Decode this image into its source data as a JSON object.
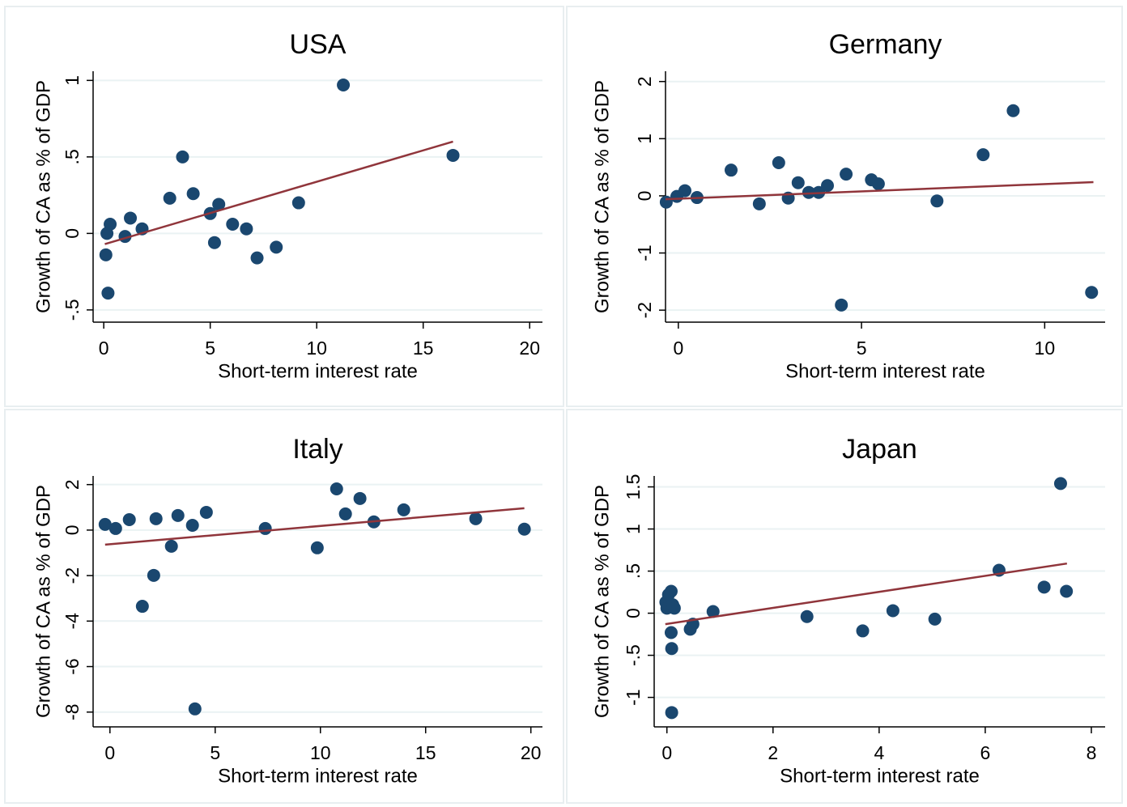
{
  "chart_data": [
    {
      "type": "scatter",
      "title": "USA",
      "xlabel": "Short-term interest rate",
      "ylabel": "Growth of CA as % of GDP",
      "xlim": [
        -0.5,
        20.6
      ],
      "ylim": [
        -0.58,
        1.06
      ],
      "xticks": [
        0,
        5,
        10,
        15,
        20
      ],
      "yticks": [
        {
          "value": -0.5,
          "label": "-.5"
        },
        0,
        {
          "value": 0.5,
          "label": ".5"
        },
        1
      ],
      "grid": true,
      "series": [
        {
          "color": "#1a476f",
          "x": [
            0.15,
            0.3,
            0.1,
            0.2,
            1.0,
            1.25,
            1.8,
            3.1,
            3.7,
            4.2,
            5.0,
            5.4,
            5.2,
            6.05,
            6.7,
            7.2,
            8.1,
            9.15,
            11.25,
            16.4
          ],
          "values": [
            0,
            0.06,
            -0.14,
            -0.39,
            -0.02,
            0.1,
            0.03,
            0.23,
            0.5,
            0.26,
            0.13,
            0.19,
            -0.06,
            0.06,
            0.03,
            -0.16,
            -0.09,
            0.2,
            0.97,
            0.51
          ]
        }
      ],
      "fit_line": {
        "color": "#90353b",
        "x": [
          0.05,
          16.4
        ],
        "values": [
          -0.07,
          0.6
        ]
      }
    },
    {
      "type": "scatter",
      "title": "Germany",
      "xlabel": "Short-term interest rate",
      "ylabel": "Growth of CA as % of GDP",
      "xlim": [
        -0.35,
        11.65
      ],
      "ylim": [
        -2.21,
        2.18
      ],
      "xticks": [
        0,
        5,
        10
      ],
      "yticks": [
        -2,
        -1,
        0,
        1,
        2
      ],
      "grid": true,
      "series": [
        {
          "color": "#1a476f",
          "x": [
            -0.33,
            -0.04,
            0.18,
            0.51,
            1.44,
            2.21,
            2.74,
            3.0,
            3.27,
            3.56,
            3.83,
            4.07,
            4.58,
            5.27,
            5.46,
            4.45,
            7.06,
            8.32,
            9.14,
            11.28
          ],
          "values": [
            -0.11,
            -0.01,
            0.09,
            -0.03,
            0.45,
            -0.14,
            0.58,
            -0.04,
            0.23,
            0.06,
            0.06,
            0.18,
            0.38,
            0.28,
            0.21,
            -1.91,
            -0.09,
            0.72,
            1.49,
            -1.69
          ]
        }
      ],
      "fit_line": {
        "color": "#90353b",
        "x": [
          -0.35,
          11.33
        ],
        "values": [
          -0.06,
          0.24
        ]
      }
    },
    {
      "type": "scatter",
      "title": "Italy",
      "xlabel": "Short-term interest rate",
      "ylabel": "Growth of CA as % of GDP",
      "xlim": [
        -0.8,
        20.55
      ],
      "ylim": [
        -8.65,
        2.38
      ],
      "xticks": [
        0,
        5,
        10,
        15,
        20
      ],
      "yticks": [
        -8,
        -6,
        -4,
        -2,
        0,
        2
      ],
      "grid": true,
      "series": [
        {
          "color": "#1a476f",
          "x": [
            -0.23,
            0.27,
            0.92,
            1.54,
            2.08,
            2.19,
            2.92,
            3.23,
            3.92,
            4.58,
            4.04,
            7.38,
            9.85,
            10.77,
            11.19,
            11.88,
            12.54,
            13.96,
            17.38,
            19.69
          ],
          "values": [
            0.25,
            0.07,
            0.46,
            -3.35,
            -1.99,
            0.5,
            -0.71,
            0.64,
            0.21,
            0.78,
            -7.86,
            0.07,
            -0.78,
            1.81,
            0.71,
            1.39,
            0.36,
            0.89,
            0.5,
            0.04
          ]
        }
      ],
      "fit_line": {
        "color": "#90353b",
        "x": [
          -0.23,
          19.69
        ],
        "values": [
          -0.64,
          0.96
        ]
      }
    },
    {
      "type": "scatter",
      "title": "Japan",
      "xlabel": "Short-term interest rate",
      "ylabel": "Growth of CA as % of GDP",
      "xlim": [
        -0.24,
        8.26
      ],
      "ylim": [
        -1.35,
        1.63
      ],
      "xticks": [
        0,
        2,
        4,
        6,
        8
      ],
      "yticks": [
        -1,
        {
          "value": -0.5,
          "label": "-.5"
        },
        0,
        {
          "value": 0.5,
          "label": ".5"
        },
        1,
        1.5
      ],
      "grid": true,
      "series": [
        {
          "color": "#1a476f",
          "x": [
            -0.02,
            0.03,
            0.08,
            0,
            0.11,
            0.14,
            0.08,
            0.09,
            0.09,
            0.44,
            0.49,
            0.87,
            2.64,
            3.69,
            4.26,
            5.05,
            6.26,
            7.11,
            7.42,
            7.53
          ],
          "values": [
            0.13,
            0.22,
            0.26,
            0.06,
            0.1,
            0.06,
            -0.23,
            -0.42,
            -1.18,
            -0.19,
            -0.13,
            0.02,
            -0.04,
            -0.21,
            0.03,
            -0.07,
            0.51,
            0.31,
            1.54,
            0.26
          ]
        }
      ],
      "fit_line": {
        "color": "#90353b",
        "x": [
          -0.03,
          7.54
        ],
        "values": [
          -0.13,
          0.59
        ]
      }
    }
  ]
}
